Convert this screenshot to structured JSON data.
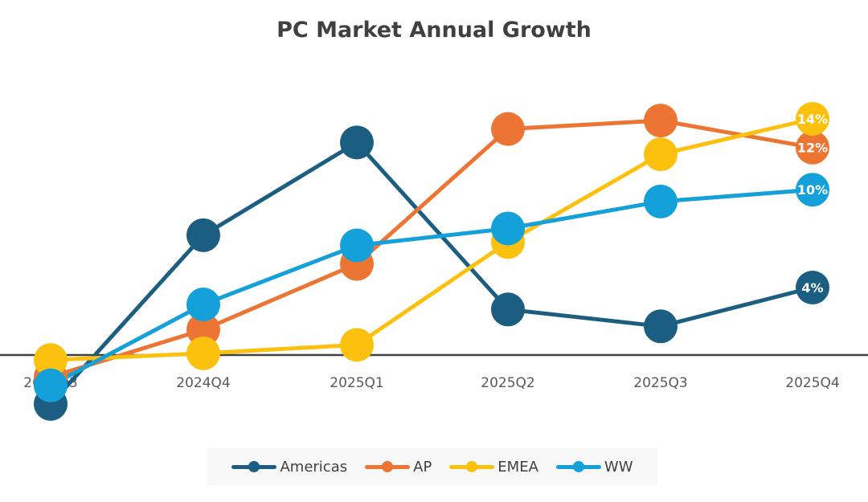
{
  "chart_data": {
    "type": "line",
    "title": "PC Market Annual Growth",
    "categories": [
      "2024Q3",
      "2024Q4",
      "2025Q1",
      "2025Q2",
      "2025Q3",
      "2025Q4"
    ],
    "ylim": [
      -5,
      17
    ],
    "grid": false,
    "legend_position": "bottom",
    "series": [
      {
        "name": "Americas",
        "color": "#1b5e82",
        "values": [
          -2.9,
          7.1,
          12.6,
          2.7,
          1.7,
          4.0
        ],
        "last_label": "4%"
      },
      {
        "name": "AP",
        "color": "#ed7534",
        "values": [
          -1.3,
          1.5,
          5.4,
          13.4,
          13.9,
          12.3
        ],
        "last_label": "12%"
      },
      {
        "name": "EMEA",
        "color": "#fcc10e",
        "values": [
          -0.3,
          0.1,
          0.6,
          6.7,
          11.9,
          14.0
        ],
        "last_label": "14%"
      },
      {
        "name": "WW",
        "color": "#14a0d8",
        "values": [
          -1.8,
          3.0,
          6.5,
          7.5,
          9.1,
          9.8
        ],
        "last_label": "10%"
      }
    ]
  }
}
